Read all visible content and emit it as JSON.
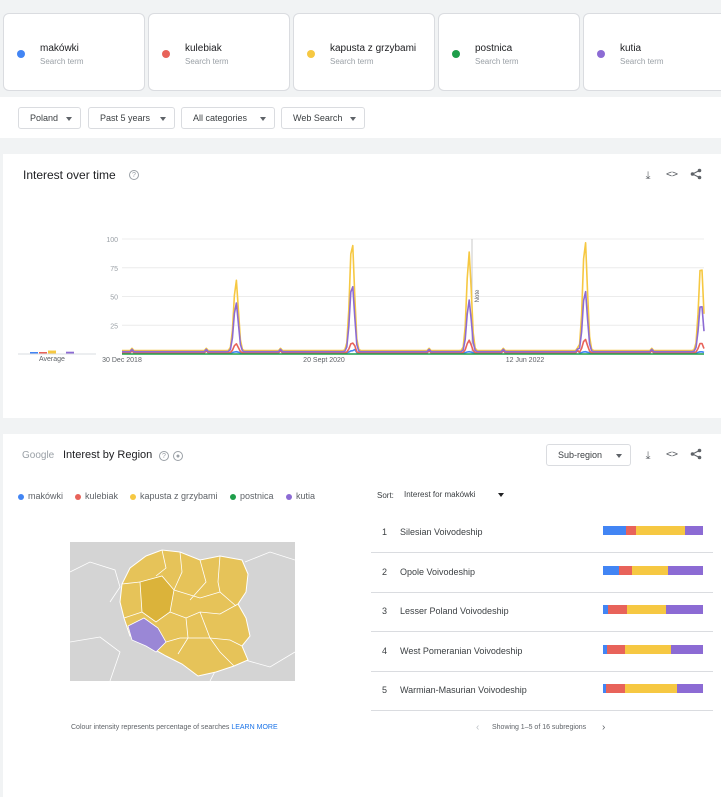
{
  "terms": [
    {
      "name": "makówki",
      "sub": "Search term",
      "color": "#4285f4"
    },
    {
      "name": "kulebiak",
      "sub": "Search term",
      "color": "#e8635a"
    },
    {
      "name": "kapusta z grzybami",
      "sub": "Search term",
      "color": "#f6c842"
    },
    {
      "name": "postnica",
      "sub": "Search term",
      "color": "#1e9e4a"
    },
    {
      "name": "kutia",
      "sub": "Search term",
      "color": "#8c6bd4"
    }
  ],
  "filters": {
    "region": "Poland",
    "time": "Past 5 years",
    "category": "All categories",
    "search_type": "Web Search"
  },
  "interest_over_time": {
    "title": "Interest over time",
    "average_label": "Average",
    "note_label": "Note"
  },
  "chart_data": {
    "type": "line",
    "x_tick_labels": [
      "30 Dec 2018",
      "20 Sept 2020",
      "12 Jun 2022"
    ],
    "y_ticks": [
      25,
      50,
      75,
      100
    ],
    "ylim": [
      0,
      100
    ],
    "grid": true,
    "note_position": "Dec 2021",
    "peaks": [
      "Dec 2019",
      "Dec 2020",
      "Dec 2021",
      "Dec 2022",
      "Dec 2023"
    ],
    "series": [
      {
        "name": "makówki",
        "color": "#4285f4",
        "average": 1,
        "peak_values": [
          2,
          3,
          2,
          2,
          2
        ]
      },
      {
        "name": "kulebiak",
        "color": "#e8635a",
        "average": 1,
        "peak_values": [
          9,
          10,
          12,
          13,
          10
        ]
      },
      {
        "name": "kapusta z grzybami",
        "color": "#f6c842",
        "average": 3,
        "peak_values": [
          65,
          100,
          89,
          100,
          80
        ]
      },
      {
        "name": "postnica",
        "color": "#1e9e4a",
        "average": 0,
        "peak_values": [
          0,
          0,
          0,
          0,
          0
        ]
      },
      {
        "name": "kutia",
        "color": "#8c6bd4",
        "average": 2,
        "peak_values": [
          45,
          62,
          47,
          56,
          45
        ]
      }
    ]
  },
  "interest_by_region": {
    "google_label": "Google",
    "title": "Interest by Region",
    "subregion_label": "Sub-region",
    "sort_label": "Sort:",
    "sort_value": "Interest for makówki",
    "map_note": "Colour intensity represents percentage of searches",
    "learn_more": "LEARN MORE",
    "pagination": "Showing 1–5 of 16 subregions",
    "rows": [
      {
        "rank": "1",
        "name": "Silesian Voivodeship",
        "shares": [
          23,
          10,
          49,
          0,
          18
        ]
      },
      {
        "rank": "2",
        "name": "Opole Voivodeship",
        "shares": [
          16,
          13,
          36,
          0,
          35
        ]
      },
      {
        "rank": "3",
        "name": "Lesser Poland Voivodeship",
        "shares": [
          5,
          19,
          39,
          0,
          37
        ]
      },
      {
        "rank": "4",
        "name": "West Pomeranian Voivodeship",
        "shares": [
          4,
          18,
          46,
          0,
          32
        ]
      },
      {
        "rank": "5",
        "name": "Warmian-Masurian Voivodeship",
        "shares": [
          3,
          19,
          52,
          0,
          26
        ]
      }
    ]
  }
}
